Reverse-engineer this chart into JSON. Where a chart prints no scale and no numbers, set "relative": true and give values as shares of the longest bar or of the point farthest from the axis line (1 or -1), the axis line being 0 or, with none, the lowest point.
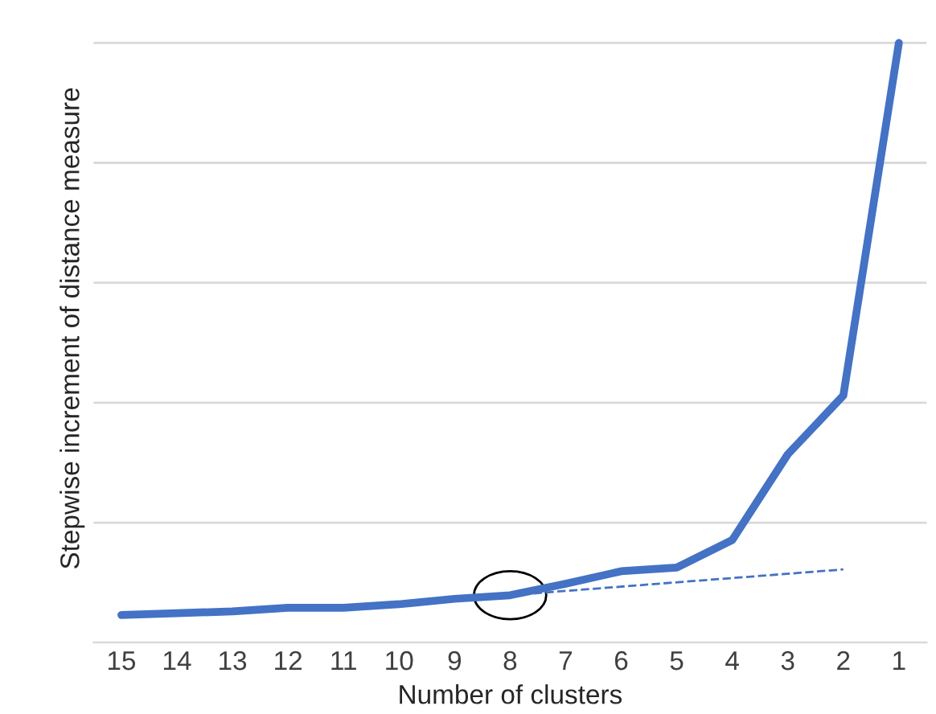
{
  "chart_data": {
    "type": "line",
    "relative": true,
    "xlabel": "Number of clusters",
    "ylabel": "Stepwise increment of distance measure",
    "categories": [
      "15",
      "14",
      "13",
      "12",
      "11",
      "10",
      "9",
      "8",
      "7",
      "6",
      "5",
      "4",
      "3",
      "2",
      "1"
    ],
    "series": [
      {
        "color": "#4472c4",
        "values": [
          0.046,
          0.049,
          0.052,
          0.058,
          0.058,
          0.064,
          0.073,
          0.079,
          0.098,
          0.119,
          0.125,
          0.171,
          0.314,
          0.412,
          1
        ]
      },
      {
        "color": "#4472c4",
        "line_style": "dashed",
        "values": [
          null,
          null,
          null,
          null,
          null,
          null,
          null,
          0.079,
          null,
          null,
          null,
          null,
          null,
          0.122,
          null
        ]
      }
    ],
    "grid": "y",
    "legend": false,
    "marker": "none"
  }
}
